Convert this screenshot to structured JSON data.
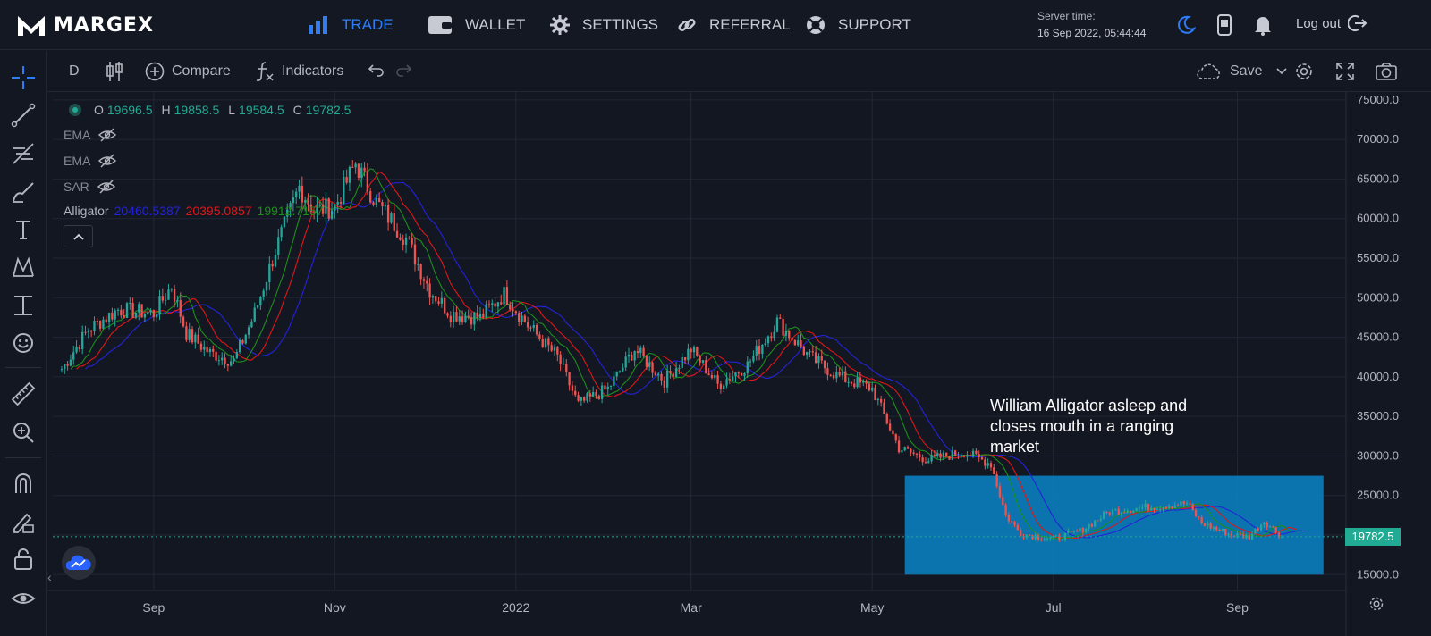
{
  "brand": {
    "name": "MARGEX"
  },
  "nav": {
    "items": [
      {
        "label": "TRADE",
        "icon": "bar-chart-icon",
        "active": true
      },
      {
        "label": "WALLET",
        "icon": "wallet-icon"
      },
      {
        "label": "SETTINGS",
        "icon": "gear-icon"
      },
      {
        "label": "REFERRAL",
        "icon": "link-icon"
      },
      {
        "label": "SUPPORT",
        "icon": "lifebuoy-icon"
      }
    ],
    "accent": "#2f7df6"
  },
  "server": {
    "label": "Server time:",
    "value": "16 Sep 2022, 05:44:44"
  },
  "account": {
    "logout_label": "Log out",
    "icons": [
      "moon-icon",
      "mobile-icon",
      "bell-icon",
      "logout-icon"
    ]
  },
  "toolbar": {
    "interval": "D",
    "compare_label": "Compare",
    "indicators_label": "Indicators",
    "save_label": "Save"
  },
  "legend": {
    "open": "19696.5",
    "high": "19858.5",
    "low": "19584.5",
    "close": "19782.5",
    "indicators": [
      {
        "name": "EMA"
      },
      {
        "name": "EMA"
      },
      {
        "name": "SAR"
      }
    ],
    "alligator": {
      "name": "Alligator",
      "jaw": "20460.5387",
      "teeth": "20395.0857",
      "lips": "19912.7157",
      "colors": {
        "jaw": "#2323d8",
        "teeth": "#e01717",
        "lips": "#1b8f1b"
      }
    }
  },
  "annotation": {
    "text": "William Alligator asleep and closes mouth in a ranging market",
    "box_color": "#0a84c6"
  },
  "current_price": {
    "label": "19782.5",
    "color": "#22ab94"
  },
  "chart_data": {
    "type": "candlestick",
    "x_ticks": [
      "Sep",
      "Nov",
      "2022",
      "Mar",
      "May",
      "Jul",
      "Sep"
    ],
    "y_ticks": [
      "15000.0",
      "20000.0",
      "25000.0",
      "30000.0",
      "35000.0",
      "40000.0",
      "45000.0",
      "50000.0",
      "55000.0",
      "60000.0",
      "65000.0",
      "70000.0",
      "75000.0"
    ],
    "ylim": [
      13000,
      76000
    ],
    "up_color": "#26a69a",
    "down_color": "#ef5350",
    "price_path": [
      [
        "2021-08-01",
        41000
      ],
      [
        "2021-08-10",
        46000
      ],
      [
        "2021-08-20",
        48500
      ],
      [
        "2021-09-01",
        48000
      ],
      [
        "2021-09-07",
        51500
      ],
      [
        "2021-09-12",
        45500
      ],
      [
        "2021-09-20",
        43000
      ],
      [
        "2021-09-28",
        42000
      ],
      [
        "2021-10-05",
        48000
      ],
      [
        "2021-10-12",
        56000
      ],
      [
        "2021-10-20",
        64000
      ],
      [
        "2021-10-25",
        61000
      ],
      [
        "2021-11-01",
        61500
      ],
      [
        "2021-11-08",
        67000
      ],
      [
        "2021-11-15",
        62000
      ],
      [
        "2021-11-25",
        57500
      ],
      [
        "2021-12-03",
        51000
      ],
      [
        "2021-12-10",
        48000
      ],
      [
        "2021-12-20",
        47500
      ],
      [
        "2021-12-28",
        50500
      ],
      [
        "2022-01-05",
        46500
      ],
      [
        "2022-01-15",
        42500
      ],
      [
        "2022-01-22",
        36500
      ],
      [
        "2022-02-01",
        38500
      ],
      [
        "2022-02-10",
        43500
      ],
      [
        "2022-02-20",
        39500
      ],
      [
        "2022-03-01",
        43500
      ],
      [
        "2022-03-10",
        39000
      ],
      [
        "2022-03-20",
        41500
      ],
      [
        "2022-03-30",
        47000
      ],
      [
        "2022-04-10",
        42500
      ],
      [
        "2022-04-20",
        40000
      ],
      [
        "2022-05-01",
        38500
      ],
      [
        "2022-05-10",
        31000
      ],
      [
        "2022-05-20",
        29500
      ],
      [
        "2022-06-01",
        30500
      ],
      [
        "2022-06-10",
        29000
      ],
      [
        "2022-06-15",
        22500
      ],
      [
        "2022-06-20",
        20200
      ],
      [
        "2022-07-01",
        19500
      ],
      [
        "2022-07-10",
        20500
      ],
      [
        "2022-07-20",
        23000
      ],
      [
        "2022-08-01",
        23500
      ],
      [
        "2022-08-15",
        24000
      ],
      [
        "2022-08-20",
        21500
      ],
      [
        "2022-08-30",
        20000
      ],
      [
        "2022-09-05",
        19800
      ],
      [
        "2022-09-10",
        21800
      ],
      [
        "2022-09-16",
        19782.5
      ]
    ],
    "highlight_range": {
      "x": [
        "2022-05-12",
        "2022-09-30"
      ],
      "y": [
        15000,
        27500
      ]
    }
  }
}
